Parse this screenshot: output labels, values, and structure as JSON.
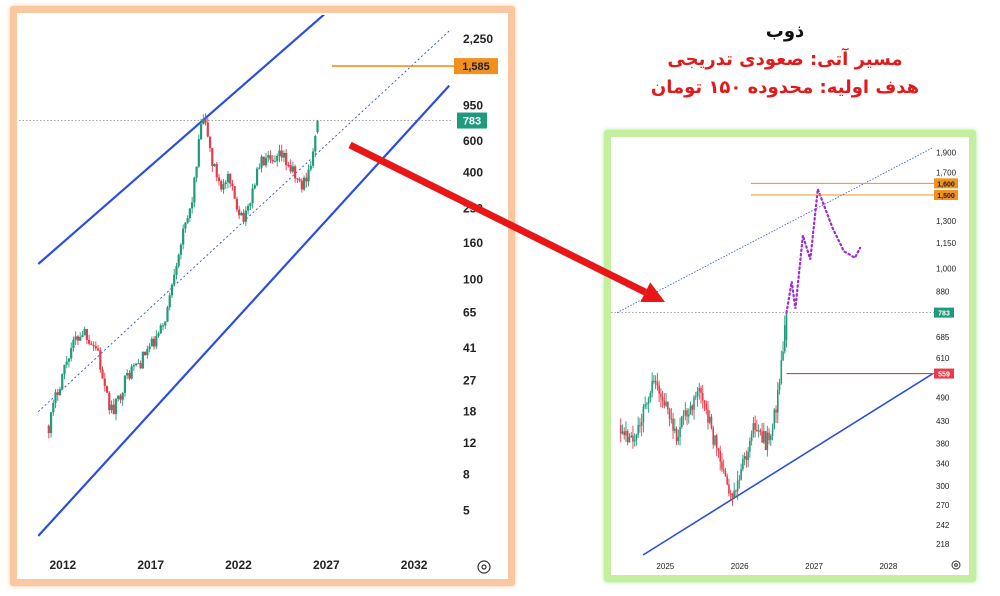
{
  "title": {
    "ticker": "ذوب",
    "line1": "مسیر آتی: صعودی تدریجی",
    "line2": "هدف اولیه: محدوده ۱۵۰ تومان"
  },
  "colors": {
    "up": "#1f9a7a",
    "down": "#e63b4a",
    "channel": "#2b4ee0",
    "target": "#f0901e",
    "support": "#e63b4a",
    "arrow": "#e81616",
    "projection": "#9b2fd0",
    "price_tag": "#1f9a7a"
  },
  "icons": {
    "settings": "gear-icon"
  },
  "chart_data": [
    {
      "type": "line",
      "title": "",
      "scale": "log",
      "y_ticks": [
        "2,250",
        "950",
        "600",
        "400",
        "250",
        "160",
        "100",
        "65",
        "41",
        "27",
        "18",
        "12",
        "8",
        "5"
      ],
      "y_tick_values": [
        2250,
        950,
        600,
        400,
        250,
        160,
        100,
        65,
        41,
        27,
        18,
        12,
        8,
        5
      ],
      "x_ticks": [
        "2012",
        "2017",
        "2022",
        "2027",
        "2032"
      ],
      "x_tick_values": [
        2012,
        2017,
        2022,
        2027,
        2032
      ],
      "xlim": [
        2010.3,
        2034.1
      ],
      "ylim": [
        3.2,
        2700
      ],
      "price_label": "783",
      "price": 783,
      "target_label": "1,585",
      "target": 1585,
      "series": [
        {
          "values": [
            [
              2011.2,
              15
            ],
            [
              2011.6,
              22
            ],
            [
              2012.0,
              30
            ],
            [
              2012.4,
              40
            ],
            [
              2012.8,
              47
            ],
            [
              2013.2,
              52
            ],
            [
              2013.6,
              45
            ],
            [
              2014.0,
              40
            ],
            [
              2014.3,
              25
            ],
            [
              2014.6,
              20
            ],
            [
              2014.9,
              18
            ],
            [
              2015.2,
              22
            ],
            [
              2015.6,
              28
            ],
            [
              2016.0,
              32
            ],
            [
              2016.4,
              34
            ],
            [
              2016.8,
              40
            ],
            [
              2017.2,
              44
            ],
            [
              2017.6,
              52
            ],
            [
              2018.0,
              70
            ],
            [
              2018.3,
              110
            ],
            [
              2018.7,
              160
            ],
            [
              2019.0,
              200
            ],
            [
              2019.3,
              260
            ],
            [
              2019.6,
              420
            ],
            [
              2019.9,
              800
            ],
            [
              2020.2,
              700
            ],
            [
              2020.5,
              450
            ],
            [
              2020.8,
              380
            ],
            [
              2021.1,
              330
            ],
            [
              2021.4,
              360
            ],
            [
              2021.7,
              300
            ],
            [
              2022.0,
              250
            ],
            [
              2022.4,
              220
            ],
            [
              2022.8,
              320
            ],
            [
              2023.2,
              450
            ],
            [
              2023.6,
              470
            ],
            [
              2024.0,
              430
            ],
            [
              2024.4,
              500
            ],
            [
              2024.8,
              450
            ],
            [
              2025.2,
              380
            ],
            [
              2025.6,
              330
            ],
            [
              2026.0,
              420
            ],
            [
              2026.3,
              520
            ],
            [
              2026.5,
              783
            ]
          ]
        },
        {
          "name": "",
          "role": "channel-upper",
          "values": [
            [
              2010.6,
              122
            ],
            [
              2027.2,
              3300
            ]
          ]
        },
        {
          "name": "",
          "role": "channel-lower",
          "values": [
            [
              2010.6,
              3.6
            ],
            [
              2034.0,
              1230
            ]
          ]
        },
        {
          "name": "",
          "role": "channel-mid",
          "values": [
            [
              2010.6,
              18
            ],
            [
              2034.0,
              2500
            ]
          ]
        }
      ]
    },
    {
      "type": "line",
      "title": "",
      "scale": "log",
      "y_ticks": [
        "1,900",
        "1,700",
        "1,300",
        "1,150",
        "1,000",
        "880",
        "685",
        "610",
        "490",
        "430",
        "380",
        "340",
        "300",
        "270",
        "242",
        "218"
      ],
      "y_tick_values": [
        1900,
        1700,
        1300,
        1150,
        1000,
        880,
        685,
        610,
        490,
        430,
        380,
        340,
        300,
        270,
        242,
        218
      ],
      "x_ticks": [
        "2025",
        "2026",
        "2027",
        "2028"
      ],
      "x_tick_values": [
        2025,
        2026,
        2027,
        2028
      ],
      "xlim": [
        2024.35,
        2028.6
      ],
      "ylim": [
        205,
        2000
      ],
      "price_label": "783",
      "price": 783,
      "support_label": "559",
      "support": 559,
      "targets": [
        {
          "label": "1,600",
          "value": 1600
        },
        {
          "label": "1,500",
          "value": 1500
        }
      ],
      "series": [
        {
          "values": [
            [
              2024.4,
              420
            ],
            [
              2024.55,
              380
            ],
            [
              2024.7,
              450
            ],
            [
              2024.85,
              540
            ],
            [
              2025.0,
              470
            ],
            [
              2025.15,
              400
            ],
            [
              2025.3,
              460
            ],
            [
              2025.45,
              500
            ],
            [
              2025.6,
              420
            ],
            [
              2025.75,
              340
            ],
            [
              2025.85,
              290
            ],
            [
              2025.95,
              300
            ],
            [
              2026.05,
              340
            ],
            [
              2026.15,
              400
            ],
            [
              2026.25,
              420
            ],
            [
              2026.35,
              380
            ],
            [
              2026.45,
              430
            ],
            [
              2026.5,
              480
            ],
            [
              2026.55,
              560
            ],
            [
              2026.6,
              680
            ],
            [
              2026.63,
              783
            ]
          ]
        },
        {
          "name": "",
          "role": "projection",
          "values": [
            [
              2026.63,
              783
            ],
            [
              2026.7,
              930
            ],
            [
              2026.75,
              800
            ],
            [
              2026.85,
              1200
            ],
            [
              2026.95,
              1050
            ],
            [
              2027.05,
              1550
            ],
            [
              2027.25,
              1250
            ],
            [
              2027.4,
              1100
            ],
            [
              2027.55,
              1060
            ],
            [
              2027.62,
              1120
            ]
          ]
        },
        {
          "name": "",
          "role": "trend-support",
          "values": [
            [
              2024.7,
              205
            ],
            [
              2028.6,
              559
            ]
          ]
        },
        {
          "name": "",
          "role": "trend-resistance",
          "values": [
            [
              2024.35,
              783
            ],
            [
              2028.6,
              1950
            ]
          ]
        }
      ]
    }
  ]
}
